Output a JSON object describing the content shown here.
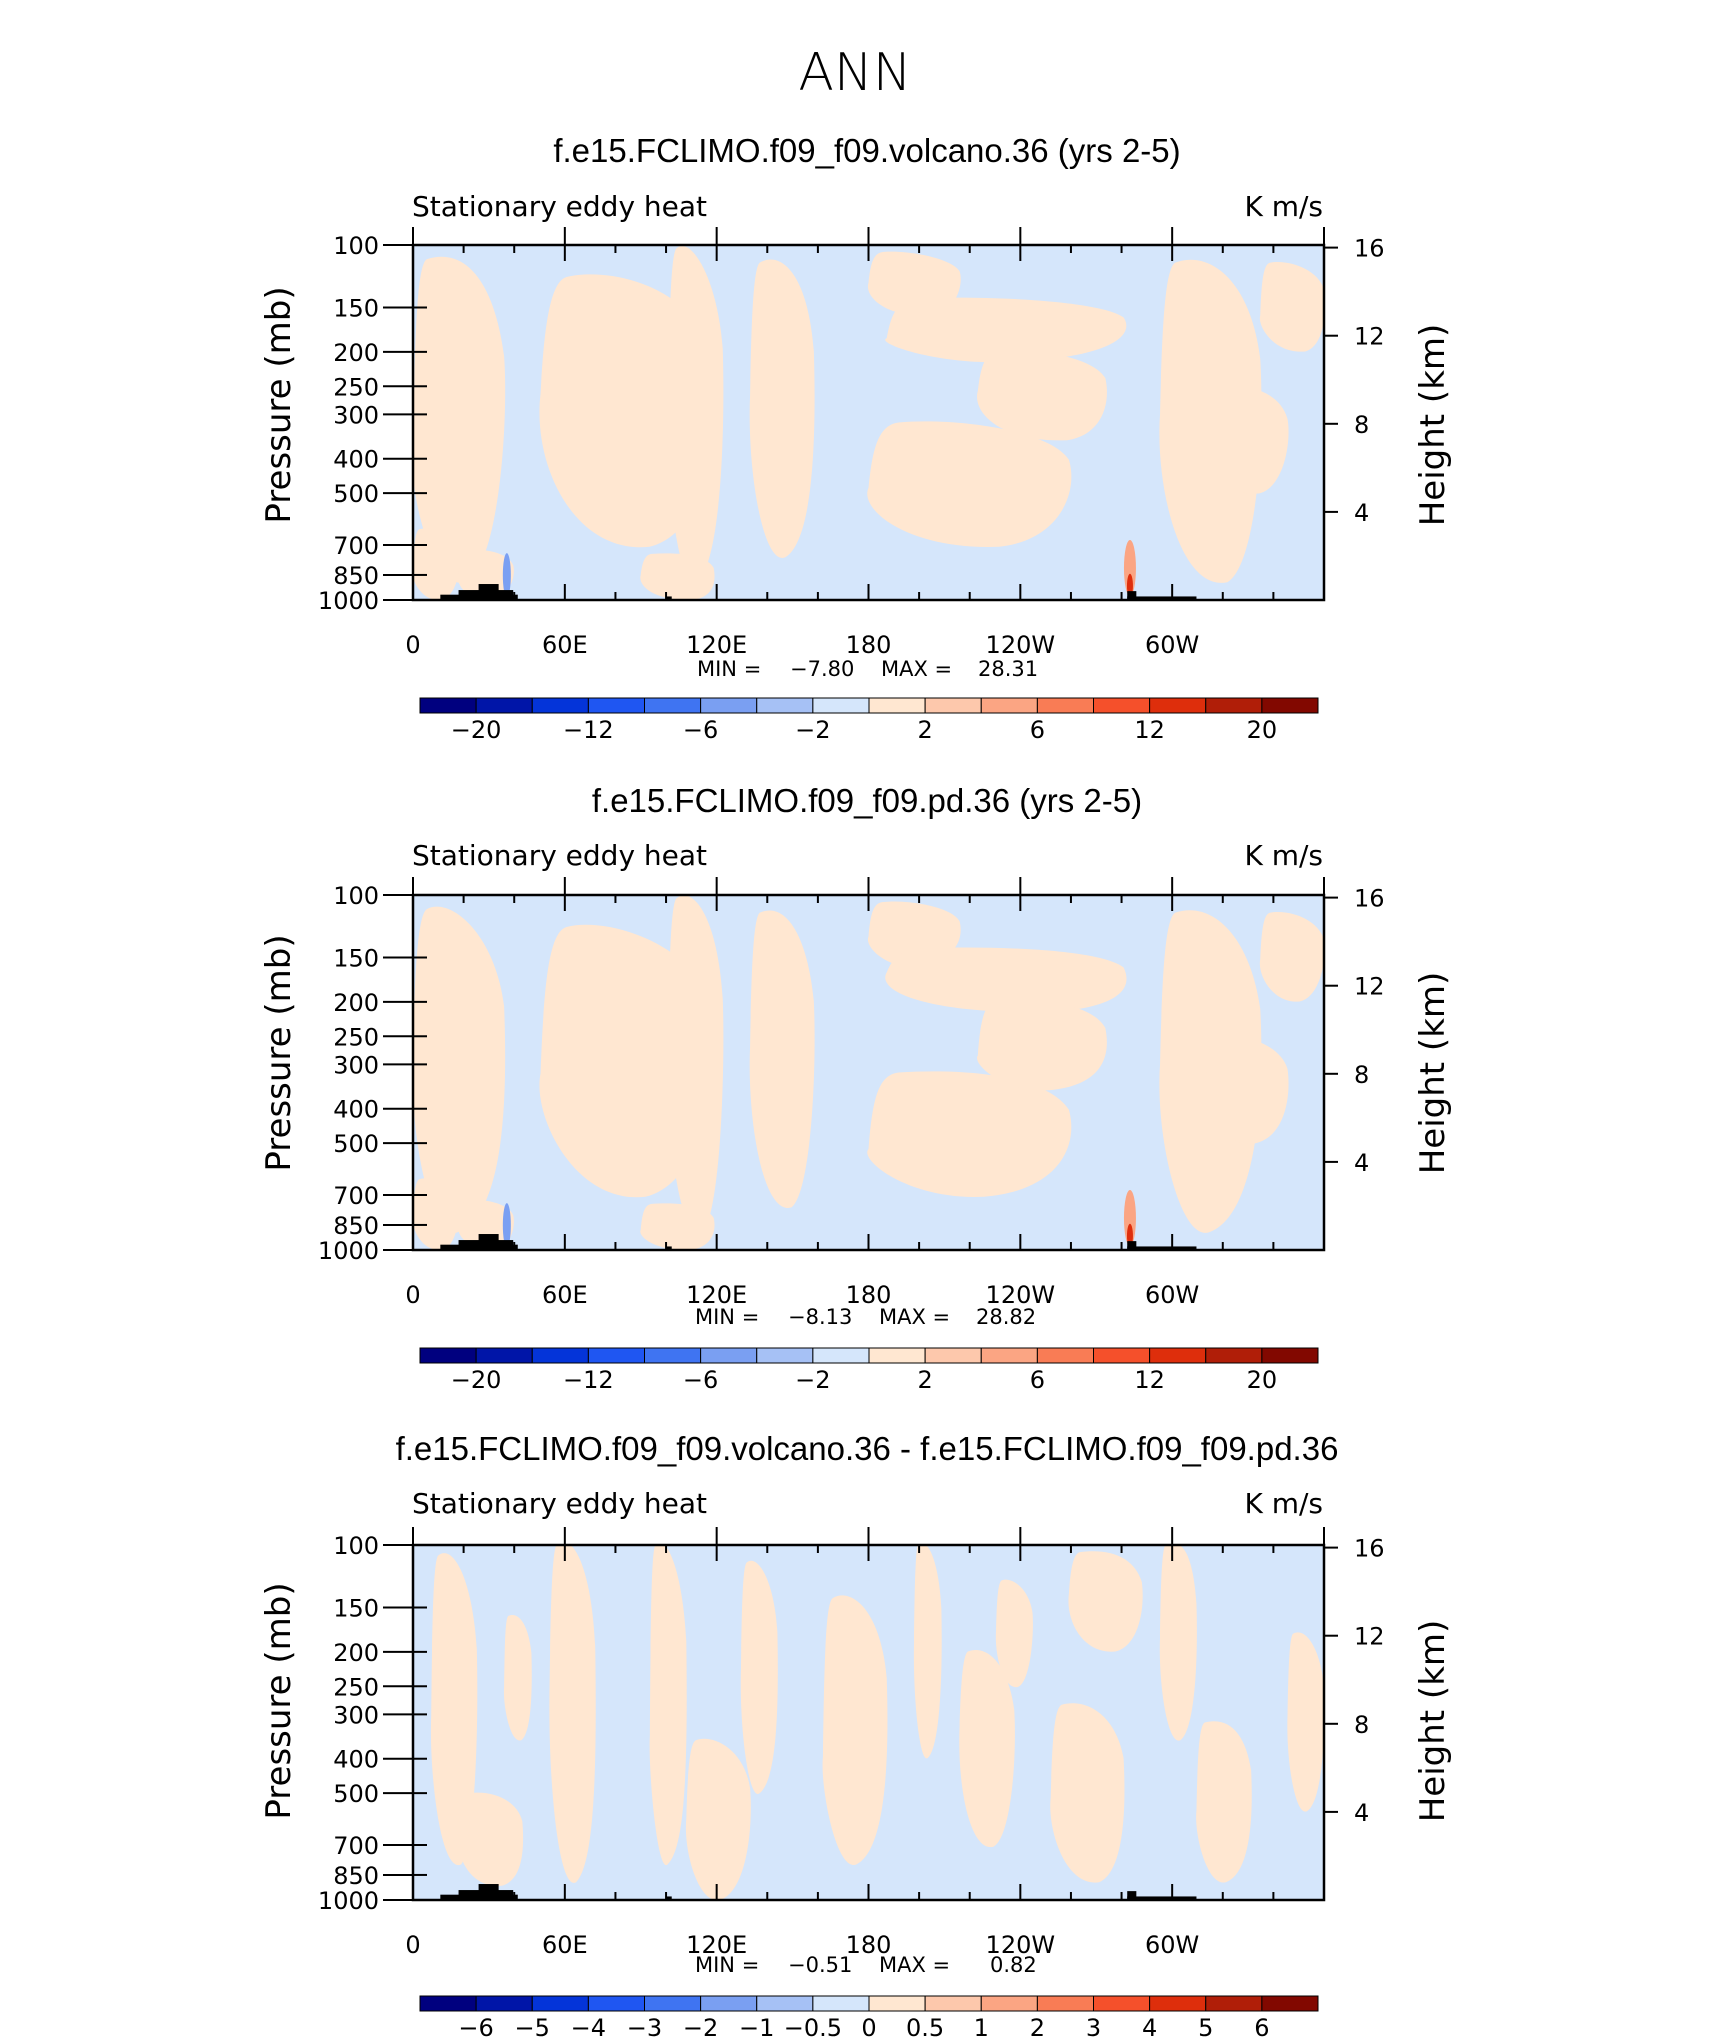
{
  "figure": {
    "title": "ANN"
  },
  "chart_data": [
    {
      "type": "heatmap",
      "title": "f.e15.FCLIMO.f09_f09.volcano.36 (yrs 2-5)",
      "left_label": "Stationary eddy heat",
      "right_label": "K m/s",
      "ylabel": "Pressure (mb)",
      "y2label": "Height (km)",
      "x_ticks": [
        "0",
        "60E",
        "120E",
        "180",
        "120W",
        "60W"
      ],
      "y_ticks": [
        "100",
        "150",
        "200",
        "250",
        "300",
        "400",
        "500",
        "700",
        "850",
        "1000"
      ],
      "y2_ticks": [
        "16",
        "12",
        "8",
        "4"
      ],
      "min_label": "MIN =",
      "min": "−7.80",
      "max_label": "MAX =",
      "max": "28.31",
      "colorbar_labels": [
        "−20",
        "−12",
        "−6",
        "−2",
        "2",
        "6",
        "12",
        "20"
      ]
    },
    {
      "type": "heatmap",
      "title": "f.e15.FCLIMO.f09_f09.pd.36 (yrs 2-5)",
      "left_label": "Stationary eddy heat",
      "right_label": "K m/s",
      "ylabel": "Pressure (mb)",
      "y2label": "Height (km)",
      "x_ticks": [
        "0",
        "60E",
        "120E",
        "180",
        "120W",
        "60W"
      ],
      "y_ticks": [
        "100",
        "150",
        "200",
        "250",
        "300",
        "400",
        "500",
        "700",
        "850",
        "1000"
      ],
      "y2_ticks": [
        "16",
        "12",
        "8",
        "4"
      ],
      "min_label": "MIN =",
      "min": "−8.13",
      "max_label": "MAX =",
      "max": "28.82",
      "colorbar_labels": [
        "−20",
        "−12",
        "−6",
        "−2",
        "2",
        "6",
        "12",
        "20"
      ]
    },
    {
      "type": "heatmap",
      "title": "f.e15.FCLIMO.f09_f09.volcano.36 - f.e15.FCLIMO.f09_f09.pd.36",
      "left_label": "Stationary eddy heat",
      "right_label": "K m/s",
      "ylabel": "Pressure (mb)",
      "y2label": "Height (km)",
      "x_ticks": [
        "0",
        "60E",
        "120E",
        "180",
        "120W",
        "60W"
      ],
      "y_ticks": [
        "100",
        "150",
        "200",
        "250",
        "300",
        "400",
        "500",
        "700",
        "850",
        "1000"
      ],
      "y2_ticks": [
        "16",
        "12",
        "8",
        "4"
      ],
      "min_label": "MIN =",
      "min": "−0.51",
      "max_label": "MAX =",
      "max": "0.82",
      "colorbar_labels": [
        "−6",
        "−5",
        "−4",
        "−3",
        "−2",
        "−1",
        "−0.5",
        "0",
        "0.5",
        "1",
        "2",
        "3",
        "4",
        "5",
        "6"
      ]
    }
  ],
  "colors": {
    "scale": [
      "#00007f",
      "#0015a8",
      "#0434d9",
      "#1f56f2",
      "#3f74f2",
      "#7a9ff2",
      "#a6c1f5",
      "#d5e6fb",
      "#ffe7d1",
      "#fdc8ac",
      "#fba583",
      "#f97c55",
      "#f5502b",
      "#de2e0c",
      "#b01e08",
      "#820800"
    ],
    "blue_fill": "#d5e6fb",
    "orange_fill": "#ffe7d1",
    "terrain": "#000000"
  }
}
